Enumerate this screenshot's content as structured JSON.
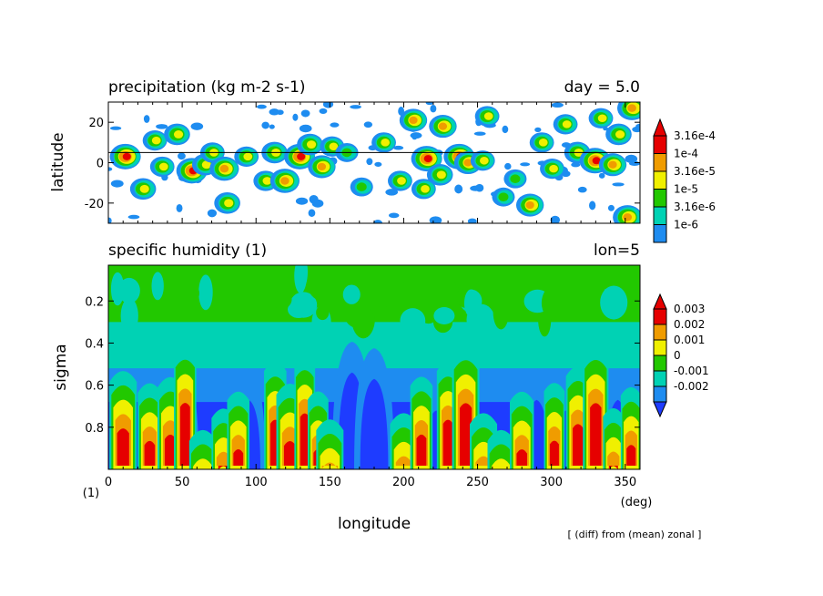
{
  "chart_data": [
    {
      "type": "heatmap",
      "title": "precipitation (kg m-2 s-1)",
      "title_right": "day = 5.0",
      "ylabel": "latitude",
      "xlim": [
        0,
        360
      ],
      "ylim": [
        -30,
        30
      ],
      "yticks": [
        -20,
        0,
        20
      ],
      "reference_line_y": 5,
      "colorbar": {
        "labels": [
          "3.16e-4",
          "1e-4",
          "3.16e-5",
          "1e-5",
          "3.16e-6",
          "1e-6"
        ],
        "colors": [
          "#1e8cf0",
          "#00d2b4",
          "#22c800",
          "#f0f000",
          "#f09c00",
          "#e60000"
        ]
      },
      "blobs": [
        [
          12,
          3,
          1.0
        ],
        [
          24,
          -13,
          0.7
        ],
        [
          32,
          11,
          0.6
        ],
        [
          37,
          -2,
          0.6
        ],
        [
          47,
          14,
          0.7
        ],
        [
          57,
          -4,
          1.0
        ],
        [
          66,
          -1,
          0.7
        ],
        [
          71,
          5,
          0.6
        ],
        [
          79,
          -3,
          0.9
        ],
        [
          81,
          -20,
          0.7
        ],
        [
          94,
          3,
          0.6
        ],
        [
          107,
          -9,
          0.6
        ],
        [
          113,
          5,
          0.7
        ],
        [
          120,
          -9,
          0.9
        ],
        [
          130,
          3,
          1.0
        ],
        [
          137,
          9,
          0.7
        ],
        [
          145,
          -2,
          0.8
        ],
        [
          152,
          8,
          0.6
        ],
        [
          162,
          5,
          0.5
        ],
        [
          172,
          -12,
          0.5
        ],
        [
          187,
          10,
          0.6
        ],
        [
          198,
          -9,
          0.6
        ],
        [
          207,
          21,
          0.8
        ],
        [
          214,
          -13,
          0.6
        ],
        [
          216,
          2,
          1.0
        ],
        [
          225,
          -6,
          0.7
        ],
        [
          227,
          18,
          0.8
        ],
        [
          238,
          3,
          1.0
        ],
        [
          244,
          0,
          0.8
        ],
        [
          254,
          1,
          0.6
        ],
        [
          257,
          23,
          0.6
        ],
        [
          268,
          -17,
          0.5
        ],
        [
          276,
          -8,
          0.5
        ],
        [
          286,
          -21,
          0.8
        ],
        [
          294,
          10,
          0.6
        ],
        [
          301,
          -3,
          0.6
        ],
        [
          310,
          19,
          0.6
        ],
        [
          318,
          5,
          0.7
        ],
        [
          330,
          1,
          1.0
        ],
        [
          334,
          22,
          0.6
        ],
        [
          342,
          -1,
          0.8
        ],
        [
          346,
          14,
          0.7
        ],
        [
          352,
          -27,
          0.9
        ],
        [
          355,
          27,
          0.9
        ]
      ]
    },
    {
      "type": "heatmap",
      "title": "specific humidity (1)",
      "title_right": "lon=5",
      "ylabel": "sigma",
      "xlabel": "longitude",
      "x_unit": "(deg)",
      "value_unit": "(1)",
      "xlim": [
        0,
        360
      ],
      "ylim": [
        1.0,
        0.03
      ],
      "xticks": [
        0,
        50,
        100,
        150,
        200,
        250,
        300,
        350
      ],
      "yticks": [
        0.2,
        0.4,
        0.6,
        0.8
      ],
      "colorbar": {
        "labels": [
          "0.003",
          "0.002",
          "0.001",
          "0",
          "-0.001",
          "-0.002"
        ],
        "colors": [
          "#1e3cff",
          "#1e8cf0",
          "#00d2b4",
          "#22c800",
          "#f0f000",
          "#f09c00",
          "#e60000"
        ]
      },
      "columns": [
        [
          10,
          0.52,
          1.0
        ],
        [
          28,
          0.58,
          0.8
        ],
        [
          42,
          0.55,
          0.9
        ],
        [
          52,
          0.4,
          0.7
        ],
        [
          64,
          0.8,
          1.0
        ],
        [
          78,
          0.7,
          0.8
        ],
        [
          88,
          0.62,
          0.7
        ],
        [
          113,
          0.48,
          0.7
        ],
        [
          123,
          0.58,
          1.0
        ],
        [
          133,
          0.45,
          0.6
        ],
        [
          142,
          0.62,
          0.6
        ],
        [
          150,
          0.75,
          1.0
        ],
        [
          200,
          0.72,
          1.0
        ],
        [
          212,
          0.55,
          0.7
        ],
        [
          230,
          0.48,
          0.7
        ],
        [
          242,
          0.4,
          1.0
        ],
        [
          254,
          0.72,
          1.0
        ],
        [
          266,
          0.8,
          1.0
        ],
        [
          280,
          0.62,
          0.8
        ],
        [
          302,
          0.58,
          0.6
        ],
        [
          318,
          0.5,
          0.8
        ],
        [
          330,
          0.4,
          0.9
        ],
        [
          342,
          0.7,
          0.6
        ],
        [
          354,
          0.6,
          0.6
        ]
      ],
      "dry_columns": [
        [
          50,
          0.55,
          0.7
        ],
        [
          95,
          0.55,
          0.7
        ],
        [
          165,
          0.42,
          1.0
        ],
        [
          180,
          0.45,
          1.0
        ],
        [
          222,
          0.6,
          0.8
        ],
        [
          290,
          0.55,
          0.8
        ],
        [
          310,
          0.6,
          0.8
        ],
        [
          345,
          0.55,
          0.7
        ]
      ]
    }
  ],
  "footnote": "[ (diff) from (mean) zonal ]"
}
